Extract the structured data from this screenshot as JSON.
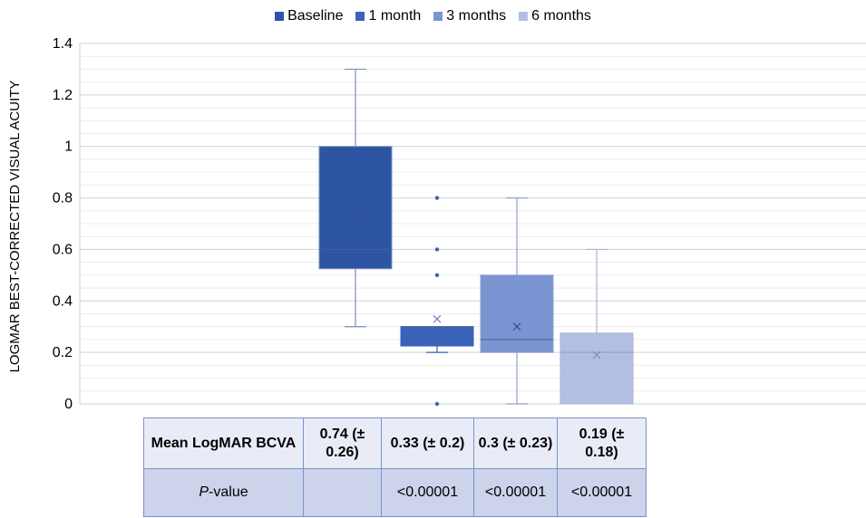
{
  "legend": {
    "items": [
      {
        "label": "Baseline",
        "color": "#2d55a3"
      },
      {
        "label": "1 month",
        "color": "#3a62b8"
      },
      {
        "label": "3 months",
        "color": "#7b94d2"
      },
      {
        "label": "6 months",
        "color": "#b3bfe2"
      }
    ]
  },
  "chart_data": {
    "type": "box",
    "xlabel": "",
    "ylabel": "LOGMAR BEST-CORRECTED VISUAL ACUITY",
    "ylim": [
      0,
      1.4
    ],
    "yticks": [
      "0",
      "0.2",
      "0.4",
      "0.6",
      "0.8",
      "1",
      "1.2",
      "1.4"
    ],
    "grid": true,
    "legend_position": "top",
    "series": [
      {
        "name": "Baseline",
        "color": "#2d55a3",
        "whisker_low": 0.3,
        "q1": 0.525,
        "median": 0.6,
        "q3": 1.0,
        "whisker_high": 1.3,
        "mean": 0.74,
        "outliers": []
      },
      {
        "name": "1 month",
        "color": "#3a62b8",
        "whisker_low": 0.2,
        "q1": 0.225,
        "median": 0.3,
        "q3": 0.3,
        "whisker_high": 0.3,
        "mean": 0.33,
        "outliers": [
          0.8,
          0.6,
          0.5,
          0.0
        ]
      },
      {
        "name": "3 months",
        "color": "#7b94d2",
        "whisker_low": 0.0,
        "q1": 0.2,
        "median": 0.25,
        "q3": 0.5,
        "whisker_high": 0.8,
        "mean": 0.3,
        "outliers": []
      },
      {
        "name": "6 months",
        "color": "#b3bfe2",
        "whisker_low": 0.0,
        "q1": 0.0,
        "median": 0.2,
        "q3": 0.275,
        "whisker_high": 0.6,
        "mean": 0.19,
        "outliers": []
      }
    ]
  },
  "table": {
    "mean_header": "Mean LogMAR BCVA",
    "mean_values": [
      "0.74 (± 0.26)",
      "0.33 (± 0.2)",
      "0.3 (± 0.23)",
      "0.19 (± 0.18)"
    ],
    "p_header_italic": "P",
    "p_header_rest": "-value",
    "p_values": [
      "",
      "<0.00001",
      "<0.00001",
      "<0.00001"
    ]
  }
}
